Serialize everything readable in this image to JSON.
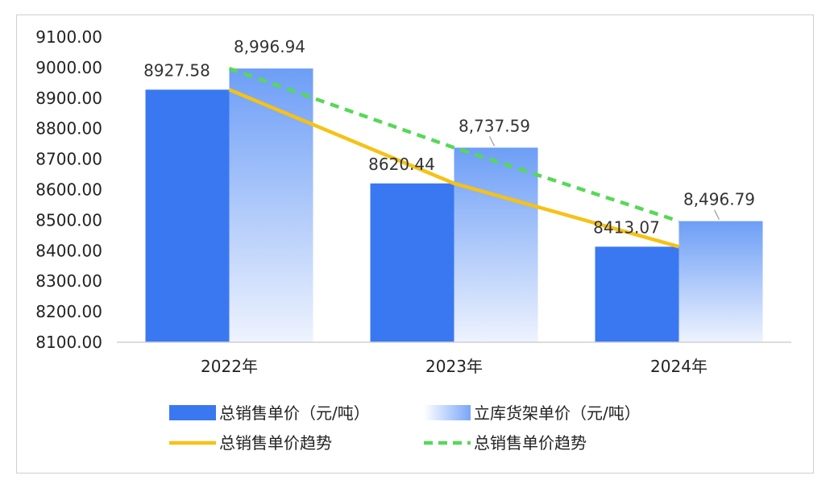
{
  "chart_data": {
    "type": "bar",
    "categories": [
      "2022年",
      "2023年",
      "2024年"
    ],
    "ylim": [
      8100,
      9100
    ],
    "yticks": [
      "8100.00",
      "8200.00",
      "8300.00",
      "8400.00",
      "8500.00",
      "8600.00",
      "8700.00",
      "8800.00",
      "8900.00",
      "9000.00",
      "9100.00"
    ],
    "series": [
      {
        "name": "总销售单价（元/吨）",
        "kind": "bar",
        "color": "#3a78f2",
        "values": [
          8927.58,
          8620.44,
          8413.07
        ],
        "labels": [
          "8927.58",
          "8620.44",
          "8413.07"
        ]
      },
      {
        "name": "立库货架单价（元/吨）",
        "kind": "bar-gradient",
        "color": "#7aa6f7",
        "values": [
          8996.94,
          8737.59,
          8496.79
        ],
        "labels": [
          "8,996.94",
          "8,737.59",
          "8,496.79"
        ]
      },
      {
        "name": "总销售单价趋势",
        "kind": "line",
        "color": "#f5c216",
        "values": [
          8927.58,
          8620.44,
          8413.07
        ]
      },
      {
        "name": "总销售单价趋势",
        "kind": "dashed-line",
        "color": "#57d857",
        "values": [
          8996.94,
          8737.59,
          8496.79
        ]
      }
    ],
    "grid": false,
    "legend_position": "bottom"
  }
}
